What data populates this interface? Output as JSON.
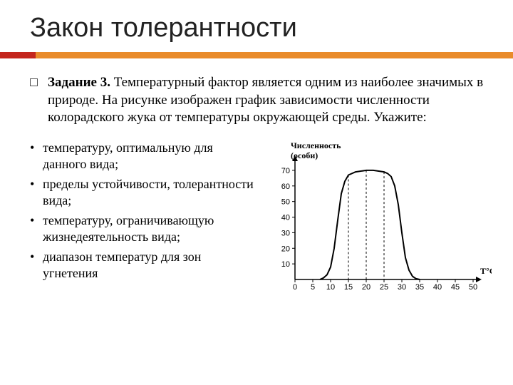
{
  "title": "Закон толерантности",
  "task": {
    "label": "Задание 3.",
    "text": "Температурный фактор является одним из наиболее значимых в природе. На рисунке изображен график зависимости численности колорадского жука от температуры окружающей среды. Укажите:"
  },
  "bullets": [
    "температуру, оптимальную для данного вида;",
    "пределы устойчивости, толерантности вида;",
    "температуру, ограничивающую жизнедеятельность вида;",
    "диапазон температур для зон угнетения"
  ],
  "chart": {
    "type": "line",
    "y_label_1": "Численность",
    "y_label_2": "(особи)",
    "x_label": "T°C",
    "x_ticks": [
      0,
      5,
      10,
      15,
      20,
      25,
      30,
      35,
      40,
      45,
      50
    ],
    "y_ticks": [
      10,
      20,
      30,
      40,
      50,
      60,
      70
    ],
    "xlim": [
      0,
      50
    ],
    "ylim": [
      0,
      75
    ],
    "curve": [
      [
        7,
        0
      ],
      [
        8,
        1
      ],
      [
        9,
        3
      ],
      [
        10,
        8
      ],
      [
        11,
        20
      ],
      [
        12,
        38
      ],
      [
        13,
        55
      ],
      [
        14,
        63
      ],
      [
        15,
        67
      ],
      [
        17,
        69
      ],
      [
        20,
        70
      ],
      [
        22,
        70
      ],
      [
        25,
        69
      ],
      [
        26,
        68
      ],
      [
        27,
        66
      ],
      [
        28,
        60
      ],
      [
        29,
        48
      ],
      [
        30,
        30
      ],
      [
        31,
        14
      ],
      [
        32,
        6
      ],
      [
        33,
        2
      ],
      [
        34,
        0.5
      ],
      [
        35,
        0
      ]
    ],
    "dashed_x": [
      15,
      20,
      25
    ],
    "line_color": "#000000",
    "dash_color": "#000000",
    "background_color": "#ffffff",
    "axis_color": "#000000",
    "line_width": 2
  },
  "colors": {
    "accent_left": "#c4261d",
    "accent_right": "#e98b2a"
  }
}
